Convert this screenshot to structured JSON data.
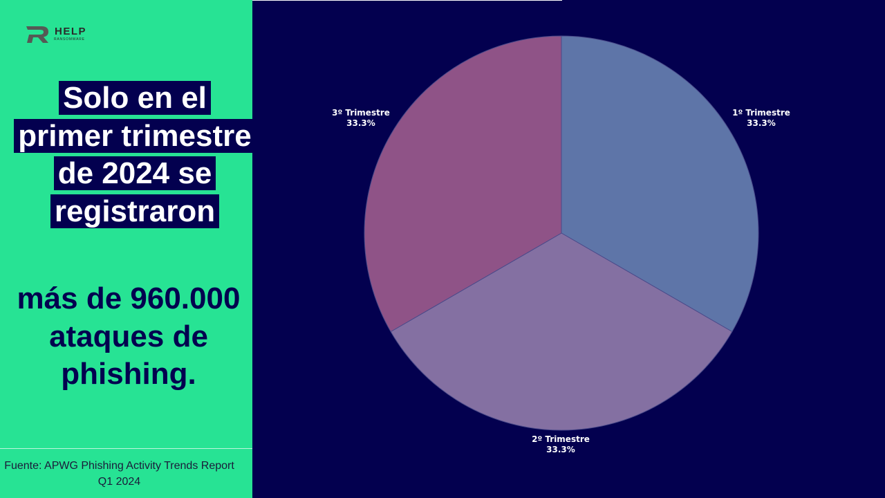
{
  "logo": {
    "word": "HELP",
    "sub": "RANSOMWARE"
  },
  "headline": "Solo en el primer trimestre de 2024 se registraron",
  "stat": "más de 960.000 ataques de phishing.",
  "source": "Fuente: APWG Phishing Activity Trends Report Q1 2024",
  "colors": {
    "left_panel": "#27e394",
    "background": "#03004f"
  },
  "chart_data": {
    "type": "pie",
    "title": "",
    "slices": [
      {
        "label": "1º Trimestre",
        "pct_label": "33.3%",
        "value": 33.3,
        "color": "#5e75a8"
      },
      {
        "label": "2º Trimestre",
        "pct_label": "33.3%",
        "value": 33.3,
        "color": "#8470a2"
      },
      {
        "label": "3º Trimestre",
        "pct_label": "33.3%",
        "value": 33.3,
        "color": "#8f5387"
      }
    ]
  }
}
